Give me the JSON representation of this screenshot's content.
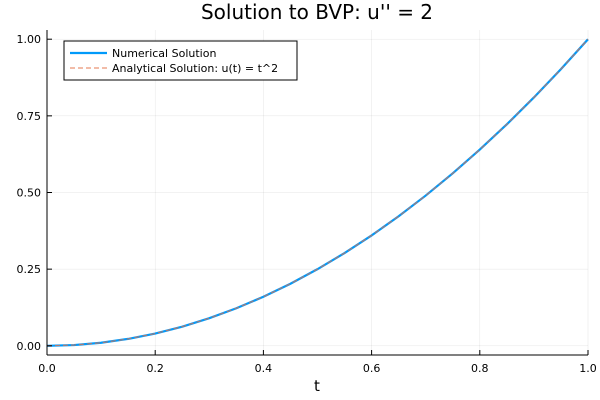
{
  "chart_data": {
    "type": "line",
    "title": "Solution to BVP: u'' = 2",
    "xlabel": "t",
    "ylabel": "",
    "xlim": [
      0.0,
      1.0
    ],
    "ylim": [
      -0.03,
      1.03
    ],
    "xticks": [
      0.0,
      0.2,
      0.4,
      0.6,
      0.8,
      1.0
    ],
    "xtick_labels": [
      "0.0",
      "0.2",
      "0.4",
      "0.6",
      "0.8",
      "1.0"
    ],
    "yticks": [
      0.0,
      0.25,
      0.5,
      0.75,
      1.0
    ],
    "ytick_labels": [
      "0.00",
      "0.25",
      "0.50",
      "0.75",
      "1.00"
    ],
    "grid": true,
    "legend_position": "top-left",
    "x": [
      0.0,
      0.05,
      0.1,
      0.15,
      0.2,
      0.25,
      0.3,
      0.35,
      0.4,
      0.45,
      0.5,
      0.55,
      0.6,
      0.65,
      0.7,
      0.75,
      0.8,
      0.85,
      0.9,
      0.95,
      1.0
    ],
    "series": [
      {
        "name": "Numerical Solution",
        "color": "#009AFA",
        "style": "solid",
        "values": [
          0.0,
          0.0025,
          0.01,
          0.0225,
          0.04,
          0.0625,
          0.09,
          0.1225,
          0.16,
          0.2025,
          0.25,
          0.3025,
          0.36,
          0.4225,
          0.49,
          0.5625,
          0.64,
          0.7225,
          0.81,
          0.9025,
          1.0
        ]
      },
      {
        "name": "Analytical Solution: u(t) = t^2",
        "color": "#E36F47",
        "style": "dashed",
        "values": [
          0.0,
          0.0025,
          0.01,
          0.0225,
          0.04,
          0.0625,
          0.09,
          0.1225,
          0.16,
          0.2025,
          0.25,
          0.3025,
          0.36,
          0.4225,
          0.49,
          0.5625,
          0.64,
          0.7225,
          0.81,
          0.9025,
          1.0
        ]
      }
    ]
  }
}
